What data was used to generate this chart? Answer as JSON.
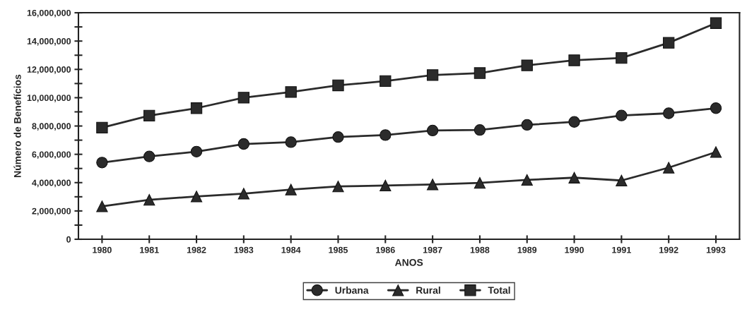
{
  "chart_data": {
    "type": "line",
    "xlabel": "ANOS",
    "ylabel": "Número de Benefícios",
    "categories": [
      "1980",
      "1981",
      "1982",
      "1983",
      "1984",
      "1985",
      "1986",
      "1987",
      "1988",
      "1989",
      "1990",
      "1991",
      "1992",
      "1993"
    ],
    "series": [
      {
        "name": "Urbana",
        "color": "#2b2b2b",
        "marker": "circle",
        "values": [
          5420000,
          5850000,
          6190000,
          6730000,
          6860000,
          7220000,
          7360000,
          7680000,
          7720000,
          8080000,
          8290000,
          8740000,
          8900000,
          9260000
        ]
      },
      {
        "name": "Rural",
        "color": "#2b2b2b",
        "marker": "triangle",
        "values": [
          2330000,
          2790000,
          3020000,
          3220000,
          3510000,
          3730000,
          3800000,
          3870000,
          3980000,
          4190000,
          4350000,
          4150000,
          5060000,
          6160000
        ]
      },
      {
        "name": "Total",
        "color": "#2b2b2b",
        "marker": "square",
        "values": [
          7880000,
          8730000,
          9260000,
          10000000,
          10400000,
          10870000,
          11170000,
          11600000,
          11740000,
          12280000,
          12640000,
          12810000,
          13880000,
          15270000
        ]
      }
    ],
    "ylim": [
      0,
      16000000
    ],
    "yticks": [
      {
        "value": 0,
        "label": "0"
      },
      {
        "value": 1000000,
        "label": null
      },
      {
        "value": 2000000,
        "label": "2,000,000"
      },
      {
        "value": 3000000,
        "label": null
      },
      {
        "value": 4000000,
        "label": "4,000,000"
      },
      {
        "value": 5000000,
        "label": null
      },
      {
        "value": 6000000,
        "label": "6,000,000"
      },
      {
        "value": 7000000,
        "label": null
      },
      {
        "value": 8000000,
        "label": "8,000,000"
      },
      {
        "value": 9000000,
        "label": null
      },
      {
        "value": 10000000,
        "label": "10,000,000"
      },
      {
        "value": 11000000,
        "label": null
      },
      {
        "value": 12000000,
        "label": "12,000,000"
      },
      {
        "value": 13000000,
        "label": null
      },
      {
        "value": 14000000,
        "label": "14,000,000"
      },
      {
        "value": 15000000,
        "label": null
      },
      {
        "value": 16000000,
        "label": "16,000,000"
      }
    ],
    "grid": false,
    "legend": "bottom",
    "line_style": "solid"
  }
}
